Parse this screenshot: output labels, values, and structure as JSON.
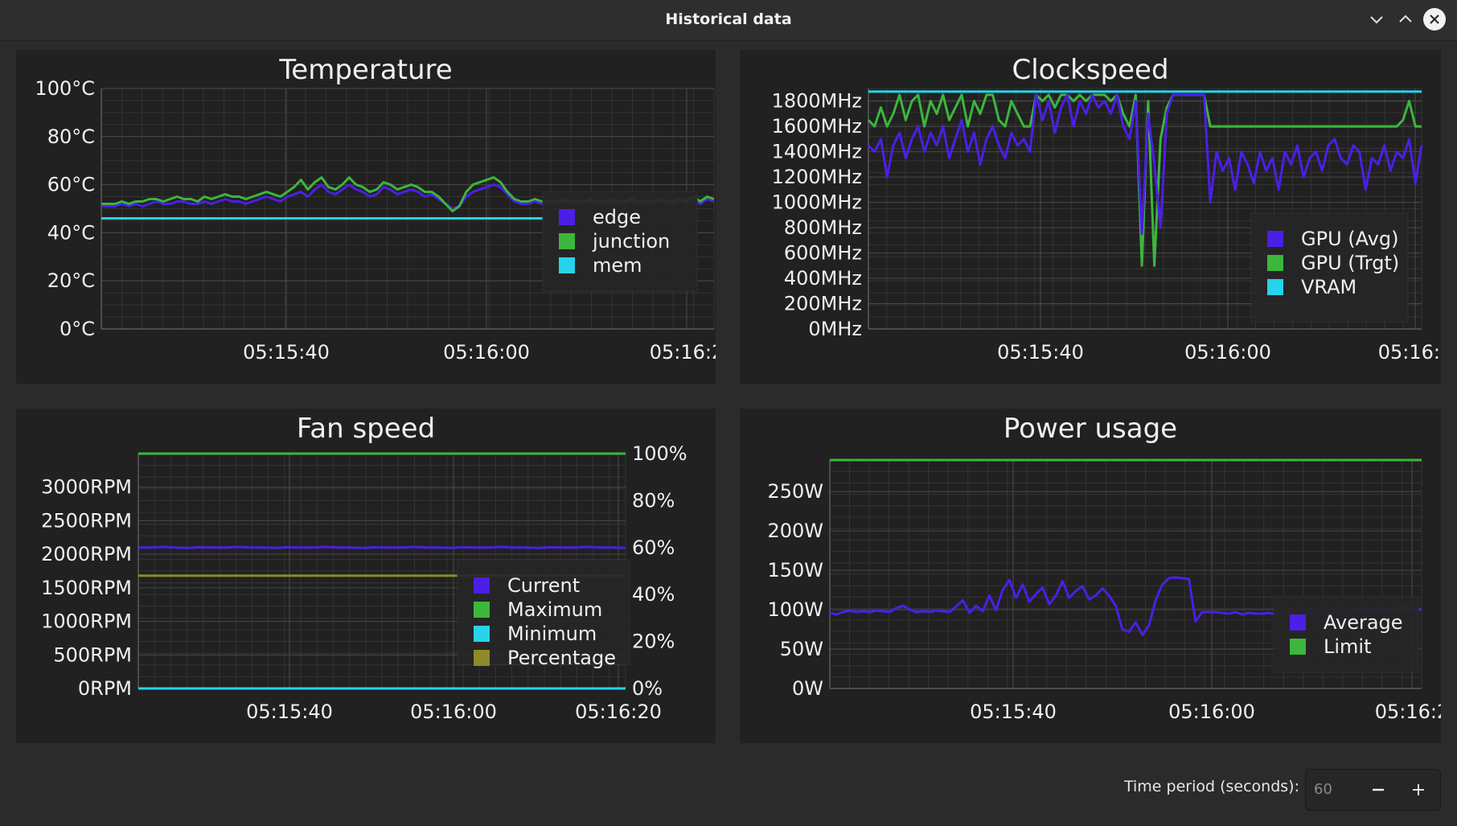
{
  "window": {
    "title": "Historical data",
    "buttons": {
      "minimize_icon": "chevron-down-icon",
      "maximize_icon": "chevron-up-icon",
      "close_icon": "close-icon"
    }
  },
  "footer": {
    "time_period_label": "Time period (seconds):",
    "time_period_value": "60",
    "decrement_icon": "minus-icon",
    "increment_icon": "plus-icon"
  },
  "colors": {
    "blue": "#4b1fe6",
    "green": "#3cb63c",
    "cyan": "#27d3ea",
    "olive": "#8c8a2a",
    "background": "#2b2b2b",
    "card": "#212121",
    "grid": "#3d3d3d",
    "grid_major": "#555555"
  },
  "chart_data": [
    {
      "id": "temperature",
      "type": "line",
      "title": "Temperature",
      "x_ticks": [
        "05:15:40",
        "05:16:00",
        "05:16:2"
      ],
      "y_ticks": [
        "0°C",
        "20°C",
        "40°C",
        "60°C",
        "80°C",
        "100°C"
      ],
      "ylim": [
        0,
        100
      ],
      "grid": true,
      "legend_position": "bottom-right",
      "series": [
        {
          "name": "edge",
          "color": "#4b1fe6",
          "values": [
            51,
            51,
            51,
            52,
            51,
            52,
            51,
            52,
            53,
            52,
            52,
            53,
            53,
            52,
            52,
            53,
            52,
            53,
            54,
            53,
            53,
            52,
            53,
            54,
            55,
            54,
            53,
            55,
            56,
            57,
            55,
            58,
            60,
            57,
            56,
            58,
            60,
            58,
            57,
            55,
            56,
            59,
            58,
            56,
            57,
            58,
            57,
            55,
            56,
            54,
            52,
            50,
            51,
            55,
            57,
            58,
            59,
            60,
            59,
            56,
            53,
            52,
            52,
            53,
            52,
            52,
            52,
            53,
            52,
            52,
            52,
            53,
            52,
            52,
            53,
            52,
            52,
            53,
            52,
            52,
            52,
            53,
            52,
            52,
            53,
            52,
            53,
            52,
            54,
            53
          ]
        },
        {
          "name": "junction",
          "color": "#3cb63c",
          "values": [
            52,
            52,
            52,
            53,
            52,
            53,
            53,
            54,
            54,
            53,
            54,
            55,
            54,
            54,
            53,
            55,
            54,
            55,
            56,
            55,
            55,
            54,
            55,
            56,
            57,
            56,
            55,
            57,
            59,
            62,
            58,
            61,
            63,
            59,
            58,
            60,
            63,
            60,
            59,
            57,
            58,
            61,
            60,
            58,
            59,
            60,
            59,
            57,
            57,
            55,
            52,
            49,
            51,
            57,
            60,
            61,
            62,
            63,
            61,
            57,
            54,
            53,
            53,
            54,
            53,
            53,
            53,
            54,
            53,
            53,
            53,
            54,
            53,
            53,
            54,
            53,
            53,
            54,
            53,
            53,
            53,
            54,
            53,
            53,
            54,
            53,
            55,
            53,
            55,
            54
          ]
        },
        {
          "name": "mem",
          "color": "#27d3ea",
          "values": [
            46,
            46,
            46,
            46,
            46,
            46,
            46,
            46,
            46,
            46,
            46,
            46,
            46,
            46,
            46,
            46,
            46,
            46,
            46,
            46,
            46,
            46,
            46,
            46,
            46,
            46,
            46,
            46,
            46,
            46,
            46,
            46,
            46,
            46,
            46,
            46,
            46,
            46,
            46,
            46,
            46,
            46,
            46,
            46,
            46,
            46,
            46,
            46,
            46,
            46,
            46,
            46,
            46,
            46,
            46,
            46,
            46,
            46,
            46,
            46,
            46,
            46,
            46,
            46,
            46,
            46,
            46,
            46,
            46,
            46,
            46,
            46,
            46,
            46,
            46,
            46,
            46,
            46,
            46,
            46,
            46,
            46,
            46,
            46,
            46,
            46,
            46,
            46,
            46,
            46
          ]
        }
      ]
    },
    {
      "id": "clockspeed",
      "type": "line",
      "title": "Clockspeed",
      "x_ticks": [
        "05:15:40",
        "05:16:00",
        "05:16:2"
      ],
      "y_ticks": [
        "0MHz",
        "200MHz",
        "400MHz",
        "600MHz",
        "800MHz",
        "1000MHz",
        "1200MHz",
        "1400MHz",
        "1600MHz",
        "1800MHz"
      ],
      "ylim": [
        0,
        1900
      ],
      "grid": true,
      "legend_position": "bottom-right",
      "series": [
        {
          "name": "GPU (Avg)",
          "color": "#4b1fe6",
          "values": [
            1450,
            1400,
            1500,
            1200,
            1450,
            1550,
            1350,
            1500,
            1600,
            1400,
            1550,
            1450,
            1600,
            1350,
            1500,
            1650,
            1400,
            1550,
            1300,
            1500,
            1600,
            1450,
            1350,
            1550,
            1450,
            1500,
            1400,
            1850,
            1650,
            1800,
            1550,
            1750,
            1850,
            1600,
            1800,
            1700,
            1850,
            1750,
            1800,
            1700,
            1850,
            1600,
            1500,
            1800,
            750,
            1700,
            1300,
            800,
            1700,
            1850,
            1850,
            1850,
            1850,
            1850,
            1850,
            1000,
            1400,
            1250,
            1350,
            1100,
            1400,
            1300,
            1150,
            1400,
            1250,
            1350,
            1100,
            1400,
            1300,
            1450,
            1200,
            1350,
            1400,
            1250,
            1450,
            1500,
            1350,
            1300,
            1450,
            1400,
            1100,
            1350,
            1300,
            1450,
            1250,
            1400,
            1350,
            1500,
            1150,
            1450
          ]
        },
        {
          "name": "GPU (Trgt)",
          "color": "#3cb63c",
          "values": [
            1650,
            1600,
            1750,
            1600,
            1700,
            1850,
            1650,
            1800,
            1850,
            1600,
            1800,
            1700,
            1850,
            1650,
            1750,
            1850,
            1600,
            1800,
            1700,
            1850,
            1850,
            1650,
            1600,
            1800,
            1700,
            1600,
            1600,
            1850,
            1800,
            1850,
            1750,
            1850,
            1850,
            1800,
            1850,
            1800,
            1850,
            1850,
            1850,
            1800,
            1850,
            1700,
            1600,
            1850,
            500,
            1800,
            500,
            1500,
            1750,
            1850,
            1850,
            1850,
            1850,
            1850,
            1850,
            1600,
            1600,
            1600,
            1600,
            1600,
            1600,
            1600,
            1600,
            1600,
            1600,
            1600,
            1600,
            1600,
            1600,
            1600,
            1600,
            1600,
            1600,
            1600,
            1600,
            1600,
            1600,
            1600,
            1600,
            1600,
            1600,
            1600,
            1600,
            1600,
            1600,
            1600,
            1650,
            1800,
            1600,
            1600
          ]
        },
        {
          "name": "VRAM",
          "color": "#27d3ea",
          "values": [
            1875,
            1875,
            1875,
            1875,
            1875,
            1875,
            1875,
            1875,
            1875,
            1875,
            1875,
            1875,
            1875,
            1875,
            1875,
            1875,
            1875,
            1875,
            1875,
            1875,
            1875,
            1875,
            1875,
            1875,
            1875,
            1875,
            1875,
            1875,
            1875,
            1875,
            1875,
            1875,
            1875,
            1875,
            1875,
            1875,
            1875,
            1875,
            1875,
            1875,
            1875,
            1875,
            1875,
            1875,
            1875,
            1875,
            1875,
            1875,
            1875,
            1875,
            1875,
            1875,
            1875,
            1875,
            1875,
            1875,
            1875,
            1875,
            1875,
            1875,
            1875,
            1875,
            1875,
            1875,
            1875,
            1875,
            1875,
            1875,
            1875,
            1875,
            1875,
            1875,
            1875,
            1875,
            1875,
            1875,
            1875,
            1875,
            1875,
            1875,
            1875,
            1875,
            1875,
            1875,
            1875,
            1875,
            1875,
            1875,
            1875,
            1875
          ]
        }
      ]
    },
    {
      "id": "fanspeed",
      "type": "line",
      "title": "Fan speed",
      "x_ticks": [
        "05:15:40",
        "05:16:00",
        "05:16:20"
      ],
      "y_ticks": [
        "0RPM",
        "500RPM",
        "1000RPM",
        "1500RPM",
        "2000RPM",
        "2500RPM",
        "3000RPM"
      ],
      "ylim": [
        0,
        3500
      ],
      "y2_ticks": [
        "0%",
        "20%",
        "40%",
        "60%",
        "80%",
        "100%"
      ],
      "y2lim": [
        0,
        100
      ],
      "grid": true,
      "legend_position": "bottom-right",
      "series": [
        {
          "name": "Current",
          "color": "#4b1fe6",
          "axis": "left",
          "values": [
            2100,
            2100,
            2110,
            2100,
            2095,
            2105,
            2100,
            2100,
            2110,
            2100,
            2100,
            2095,
            2105,
            2100,
            2100,
            2110,
            2100,
            2100,
            2095,
            2105,
            2100,
            2100,
            2110,
            2100,
            2100,
            2095,
            2105,
            2100,
            2100,
            2110,
            2100,
            2100,
            2095,
            2105,
            2100,
            2100,
            2110,
            2100,
            2100,
            2095
          ]
        },
        {
          "name": "Maximum",
          "color": "#3cb63c",
          "axis": "left",
          "values": [
            3500,
            3500
          ]
        },
        {
          "name": "Minimum",
          "color": "#27d3ea",
          "axis": "left",
          "values": [
            0,
            0
          ]
        },
        {
          "name": "Percentage",
          "color": "#8c8a2a",
          "axis": "right",
          "values": [
            48,
            48
          ]
        }
      ]
    },
    {
      "id": "power",
      "type": "line",
      "title": "Power usage",
      "x_ticks": [
        "05:15:40",
        "05:16:00",
        "05:16:2"
      ],
      "y_ticks": [
        "0W",
        "50W",
        "100W",
        "150W",
        "200W",
        "250W"
      ],
      "ylim": [
        0,
        290
      ],
      "grid": true,
      "legend_position": "bottom-right",
      "series": [
        {
          "name": "Average",
          "color": "#4b1fe6",
          "values": [
            96,
            94,
            97,
            99,
            97,
            98,
            97,
            99,
            98,
            97,
            102,
            105,
            100,
            97,
            98,
            97,
            99,
            98,
            97,
            104,
            112,
            96,
            105,
            98,
            118,
            99,
            125,
            138,
            115,
            132,
            110,
            120,
            128,
            107,
            118,
            136,
            115,
            124,
            130,
            113,
            118,
            127,
            118,
            105,
            75,
            72,
            84,
            68,
            80,
            112,
            132,
            140,
            141,
            140,
            139,
            85,
            97,
            97,
            97,
            96,
            95,
            97,
            94,
            96,
            95,
            95,
            96,
            94,
            97,
            95,
            96,
            97,
            95,
            96,
            94,
            95,
            97,
            96,
            95,
            98,
            100,
            97,
            99,
            101,
            98,
            100,
            105,
            102,
            99,
            101
          ]
        },
        {
          "name": "Limit",
          "color": "#3cb63c",
          "values": [
            290,
            290
          ]
        }
      ]
    }
  ]
}
